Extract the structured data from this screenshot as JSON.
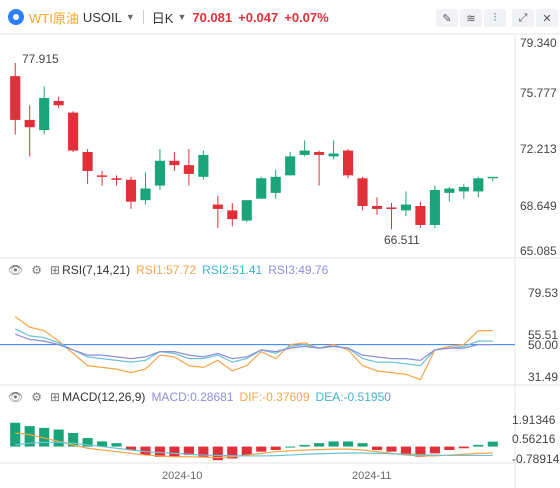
{
  "header": {
    "symbol_name": "WTI原油",
    "symbol_code": "USOIL",
    "period": "日K",
    "price": "70.081",
    "change": "+0.047",
    "change_pct": "+0.07%",
    "tools": [
      "draw-line-icon",
      "indicator-icon",
      "candle-type-icon",
      "fullscreen-icon"
    ]
  },
  "main": {
    "y_ticks": [
      "79.340",
      "75.777",
      "72.213",
      "68.649",
      "65.085"
    ],
    "ylim": [
      65.085,
      79.34
    ],
    "high_label": "77.915",
    "low_label": "66.511"
  },
  "rsi": {
    "title": "RSI(7,14,21)",
    "rsi1": "RSI1:57.72",
    "rsi2": "RSI2:51.41",
    "rsi3": "RSI3:49.76",
    "y_ticks": [
      "79.53",
      "55.51",
      "50.00",
      "31.49"
    ],
    "ylim": [
      31.49,
      79.53
    ]
  },
  "macd": {
    "title": "MACD(12,26,9)",
    "macd": "MACD:0.28681",
    "dif": "DIF:-0.37609",
    "dea": "DEA:-0.51950",
    "y_ticks": [
      "1.91346",
      "0.56216",
      "-0.78914"
    ],
    "ylim": [
      -0.78914,
      1.91346
    ]
  },
  "x_labels": [
    "2024-10",
    "2024-11"
  ],
  "colors": {
    "up": "#19a47a",
    "down": "#e0303a",
    "rsi1": "#f5a54a",
    "rsi2": "#6cc3d5",
    "rsi3": "#8e8fd6",
    "baseline": "#2d7ff9"
  },
  "chart_data": [
    {
      "type": "candlestick",
      "title": "WTI原油 USOIL 日K",
      "candles": [
        {
          "o": 77.0,
          "h": 77.9,
          "l": 73.0,
          "c": 74.0
        },
        {
          "o": 74.0,
          "h": 75.0,
          "l": 71.5,
          "c": 73.5
        },
        {
          "o": 73.3,
          "h": 76.3,
          "l": 73.0,
          "c": 75.5
        },
        {
          "o": 75.3,
          "h": 75.6,
          "l": 74.8,
          "c": 75.0
        },
        {
          "o": 74.5,
          "h": 74.6,
          "l": 71.8,
          "c": 71.9
        },
        {
          "o": 71.8,
          "h": 72.0,
          "l": 69.6,
          "c": 70.5
        },
        {
          "o": 70.2,
          "h": 70.5,
          "l": 69.5,
          "c": 70.1
        },
        {
          "o": 70.0,
          "h": 70.2,
          "l": 69.5,
          "c": 69.9
        },
        {
          "o": 69.9,
          "h": 70.1,
          "l": 67.9,
          "c": 68.4
        },
        {
          "o": 68.5,
          "h": 70.4,
          "l": 68.2,
          "c": 69.3
        },
        {
          "o": 69.5,
          "h": 72.0,
          "l": 69.2,
          "c": 71.2
        },
        {
          "o": 71.2,
          "h": 71.8,
          "l": 70.5,
          "c": 70.9
        },
        {
          "o": 70.9,
          "h": 72.0,
          "l": 69.5,
          "c": 70.3
        },
        {
          "o": 70.1,
          "h": 71.9,
          "l": 69.9,
          "c": 71.6
        },
        {
          "o": 68.2,
          "h": 68.8,
          "l": 66.6,
          "c": 67.9
        },
        {
          "o": 67.8,
          "h": 68.3,
          "l": 66.7,
          "c": 67.2
        },
        {
          "o": 67.1,
          "h": 68.4,
          "l": 67.0,
          "c": 68.5
        },
        {
          "o": 68.6,
          "h": 70.1,
          "l": 68.6,
          "c": 70.0
        },
        {
          "o": 69.0,
          "h": 70.6,
          "l": 68.6,
          "c": 70.1
        },
        {
          "o": 70.2,
          "h": 71.8,
          "l": 70.2,
          "c": 71.5
        },
        {
          "o": 71.6,
          "h": 72.6,
          "l": 71.5,
          "c": 71.9
        },
        {
          "o": 71.8,
          "h": 71.9,
          "l": 69.5,
          "c": 71.6
        },
        {
          "o": 71.5,
          "h": 72.6,
          "l": 71.3,
          "c": 71.7
        },
        {
          "o": 71.9,
          "h": 72.0,
          "l": 70.0,
          "c": 70.2
        },
        {
          "o": 70.0,
          "h": 70.1,
          "l": 67.8,
          "c": 68.1
        },
        {
          "o": 68.1,
          "h": 68.7,
          "l": 67.5,
          "c": 67.9
        },
        {
          "o": 68.0,
          "h": 68.3,
          "l": 66.5,
          "c": 67.9
        },
        {
          "o": 67.8,
          "h": 69.1,
          "l": 67.4,
          "c": 68.2
        },
        {
          "o": 68.1,
          "h": 68.4,
          "l": 66.6,
          "c": 66.8
        },
        {
          "o": 66.8,
          "h": 69.5,
          "l": 66.6,
          "c": 69.2
        },
        {
          "o": 69.0,
          "h": 69.4,
          "l": 68.4,
          "c": 69.3
        },
        {
          "o": 69.1,
          "h": 69.6,
          "l": 68.6,
          "c": 69.4
        },
        {
          "o": 69.1,
          "h": 70.1,
          "l": 68.7,
          "c": 70.0
        },
        {
          "o": 70.0,
          "h": 70.1,
          "l": 69.8,
          "c": 70.1
        }
      ]
    },
    {
      "type": "line",
      "title": "RSI(7,14,21)",
      "series": [
        {
          "name": "RSI1",
          "values": [
            66,
            60,
            58,
            52,
            45,
            38,
            37,
            36,
            34,
            36,
            44,
            43,
            38,
            37,
            41,
            35,
            38,
            46,
            42,
            50,
            51,
            48,
            50,
            47,
            38,
            35,
            34,
            33,
            30,
            47,
            49,
            50,
            58,
            58
          ]
        },
        {
          "name": "RSI2",
          "values": [
            59,
            55,
            54,
            51,
            47,
            43,
            42,
            41,
            40,
            41,
            46,
            45,
            42,
            42,
            44,
            40,
            42,
            47,
            45,
            49,
            50,
            48,
            49,
            48,
            42,
            40,
            40,
            39,
            38,
            47,
            48,
            49,
            52,
            52
          ]
        },
        {
          "name": "RSI3",
          "values": [
            56,
            53,
            52,
            50,
            47,
            44,
            44,
            43,
            42,
            43,
            46,
            46,
            44,
            43,
            45,
            42,
            43,
            47,
            46,
            48,
            49,
            48,
            49,
            48,
            44,
            43,
            42,
            42,
            41,
            47,
            48,
            48,
            50,
            50
          ]
        }
      ]
    },
    {
      "type": "bar",
      "title": "MACD(12,26,9)",
      "values": [
        1.4,
        1.2,
        1.1,
        1.0,
        0.8,
        0.5,
        0.3,
        0.2,
        -0.2,
        -0.5,
        -0.6,
        -0.6,
        -0.5,
        -0.6,
        -0.8,
        -0.7,
        -0.5,
        -0.3,
        -0.2,
        0.0,
        0.1,
        0.2,
        0.3,
        0.3,
        0.2,
        -0.2,
        -0.3,
        -0.5,
        -0.6,
        -0.4,
        -0.2,
        -0.1,
        0.1,
        0.29
      ],
      "series": [
        {
          "name": "DIF",
          "values": [
            0.8,
            0.7,
            0.5,
            0.3,
            0.1,
            -0.1,
            -0.2,
            -0.3,
            -0.4,
            -0.5,
            -0.55,
            -0.6,
            -0.6,
            -0.62,
            -0.65,
            -0.6,
            -0.5,
            -0.4,
            -0.3,
            -0.25,
            -0.2,
            -0.18,
            -0.15,
            -0.15,
            -0.2,
            -0.3,
            -0.4,
            -0.5,
            -0.55,
            -0.55,
            -0.5,
            -0.45,
            -0.4,
            -0.376
          ]
        },
        {
          "name": "DEA",
          "values": [
            0.1,
            0.2,
            0.25,
            0.25,
            0.2,
            0.1,
            0.0,
            -0.1,
            -0.2,
            -0.3,
            -0.35,
            -0.4,
            -0.45,
            -0.5,
            -0.52,
            -0.54,
            -0.55,
            -0.55,
            -0.53,
            -0.5,
            -0.45,
            -0.42,
            -0.4,
            -0.38,
            -0.38,
            -0.4,
            -0.42,
            -0.45,
            -0.48,
            -0.5,
            -0.52,
            -0.52,
            -0.52,
            -0.52
          ]
        }
      ]
    }
  ]
}
